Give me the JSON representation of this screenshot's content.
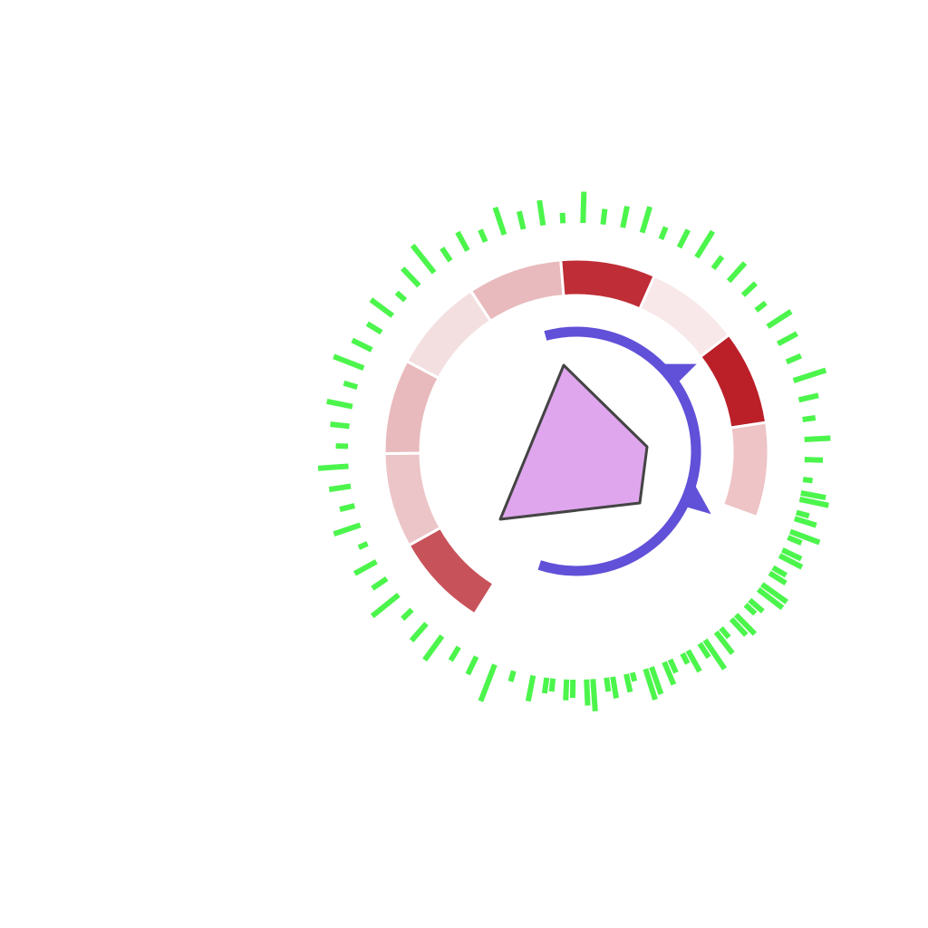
{
  "colors": {
    "background": "#ffffff",
    "bars": "#4cf54c",
    "heat_segment_border": "#ffffff",
    "arc": "#6150d8",
    "polygon_fill": "#dfa6ee",
    "polygon_stroke": "#444444"
  },
  "heat_ring": {
    "segments": [
      {
        "color": "#c8525a"
      },
      {
        "color": "#ecc5c8"
      },
      {
        "color": "#e8babd"
      },
      {
        "color": "#f4dfe0"
      },
      {
        "color": "#e8babd"
      },
      {
        "color": "#bf2d36"
      },
      {
        "color": "#f8e8e9"
      },
      {
        "color": "#bb2029"
      },
      {
        "color": "#eec4c6"
      }
    ]
  },
  "bar_ring": {
    "values": [
      0.58,
      0.3,
      0.72,
      0.48,
      0.35,
      0.7,
      0.4,
      0.62,
      0.28,
      0.8,
      0.55,
      0.33,
      0.66,
      0.2,
      0.5,
      0.74,
      0.42,
      0.3,
      0.6,
      0.25,
      0.9,
      0.45,
      0.36,
      0.68,
      0.52,
      0.3,
      0.78,
      0.4,
      0.57,
      0.22,
      0.64,
      0.35,
      0.5,
      0.7,
      0.28,
      0.44,
      0.6,
      0.32,
      0.74,
      0.5,
      0.38,
      0.62,
      0.26,
      0.55,
      0.8,
      0.35,
      0.48,
      0.3,
      0.66,
      0.42,
      0.58,
      0.24,
      0.72,
      0.36,
      0.5,
      0.62,
      0.3,
      0.45,
      0.7,
      0.34,
      0.56,
      0.4,
      0.28,
      0.64,
      0.5,
      0.36,
      0.78,
      0.46,
      0.3,
      0.6,
      0.42,
      0.22,
      0.68,
      0.52,
      0.34,
      0.58,
      0.44,
      0.7,
      0.3,
      0.5,
      0.62,
      0.38,
      0.26,
      0.56,
      0.74,
      0.42,
      0.32,
      0.6,
      0.48,
      0.36
    ]
  }
}
